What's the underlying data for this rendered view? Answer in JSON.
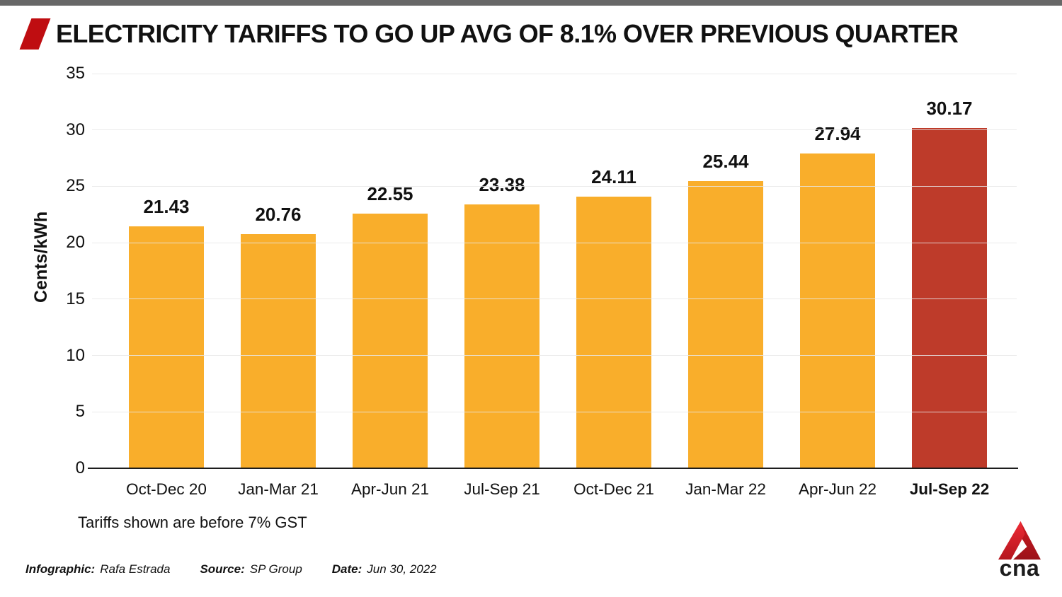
{
  "page": {
    "background": "#ffffff",
    "top_strip_color": "#676767"
  },
  "header": {
    "title": "ELECTRICITY TARIFFS TO GO UP AVG OF 8.1% OVER PREVIOUS QUARTER",
    "accent_color": "#bf0d11"
  },
  "chart_data": {
    "type": "bar",
    "title": "ELECTRICITY TARIFFS TO GO UP AVG OF 8.1% OVER PREVIOUS QUARTER",
    "categories": [
      "Oct-Dec 20",
      "Jan-Mar 21",
      "Apr-Jun 21",
      "Jul-Sep 21",
      "Oct-Dec 21",
      "Jan-Mar 22",
      "Apr-Jun 22",
      "Jul-Sep 22"
    ],
    "values": [
      21.43,
      20.76,
      22.55,
      23.38,
      24.11,
      25.44,
      27.94,
      30.17
    ],
    "ylabel": "Cents/kWh",
    "xlabel": "",
    "ylim": [
      0,
      35
    ],
    "yticks": [
      0,
      5,
      10,
      15,
      20,
      25,
      30,
      35
    ],
    "grid": true,
    "legend": "none",
    "value_labels": true,
    "bar_color_default": "#F9AE2B",
    "bar_color_highlight": "#BE3B2A",
    "highlight_index": 7,
    "bold_category_index": 7
  },
  "note": "Tariffs shown are before 7% GST",
  "footer": {
    "infographic_label": "Infographic:",
    "infographic_value": "Rafa Estrada",
    "source_label": "Source:",
    "source_value": "SP Group",
    "date_label": "Date:",
    "date_value": "Jun 30, 2022"
  },
  "logo": {
    "text": "cna",
    "triangle_color_top": "#ee2b35",
    "triangle_color_bottom": "#9b1219"
  }
}
